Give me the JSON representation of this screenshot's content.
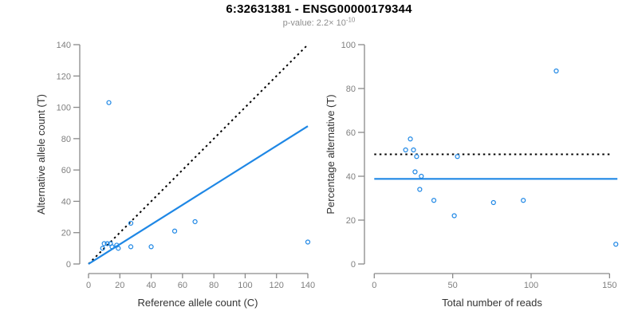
{
  "title": "6:32631381 - ENSG00000179344",
  "subtitle": {
    "prefix": "p-value: 2.2× 10",
    "exponent": "-10"
  },
  "colors": {
    "accent_blue": "#1E87E5",
    "dotted_black": "#000000",
    "axis_line": "#8A8A8A",
    "tick_label": "#7F7F7F",
    "axis_title": "#333333",
    "title_color": "#000000",
    "subtitle_color": "#8E8E8E"
  },
  "chart_data": [
    {
      "type": "scatter",
      "panel": "left",
      "xlabel": "Reference allele count (C)",
      "ylabel": "Alternative allele count (T)",
      "xlim": [
        0,
        143
      ],
      "ylim": [
        0,
        140
      ],
      "xticks": [
        0,
        20,
        40,
        60,
        80,
        100,
        120,
        140
      ],
      "yticks": [
        0,
        20,
        40,
        60,
        80,
        100,
        120,
        140
      ],
      "grid": false,
      "legend": null,
      "marker": "open-circle",
      "points": [
        [
          13,
          103
        ],
        [
          10,
          13
        ],
        [
          9,
          10
        ],
        [
          12,
          13
        ],
        [
          14,
          13
        ],
        [
          15,
          11
        ],
        [
          18,
          12
        ],
        [
          19,
          10
        ],
        [
          27,
          11
        ],
        [
          27,
          26
        ],
        [
          40,
          11
        ],
        [
          55,
          21
        ],
        [
          68,
          27
        ],
        [
          140,
          14
        ]
      ],
      "lines": [
        {
          "name": "identity-line",
          "style": "dotted",
          "color": "black",
          "from": [
            0,
            0
          ],
          "to": [
            140,
            140
          ]
        },
        {
          "name": "regression-line",
          "style": "solid",
          "color": "blue",
          "from": [
            0,
            0
          ],
          "to": [
            140,
            88
          ]
        }
      ]
    },
    {
      "type": "scatter",
      "panel": "right",
      "xlabel": "Total number of reads",
      "ylabel": "Percentage alternative (T)",
      "xlim": [
        0,
        155
      ],
      "ylim": [
        0,
        100
      ],
      "xticks": [
        0,
        50,
        100,
        150
      ],
      "yticks": [
        0,
        20,
        40,
        60,
        80,
        100
      ],
      "grid": false,
      "legend": null,
      "marker": "open-circle",
      "points": [
        [
          116,
          88
        ],
        [
          23,
          57
        ],
        [
          20,
          52
        ],
        [
          25,
          52
        ],
        [
          27,
          49
        ],
        [
          26,
          42
        ],
        [
          30,
          40
        ],
        [
          29,
          34
        ],
        [
          38,
          29
        ],
        [
          53,
          49
        ],
        [
          51,
          22
        ],
        [
          76,
          28
        ],
        [
          95,
          29
        ],
        [
          154,
          9
        ]
      ],
      "lines": [
        {
          "name": "null-50pct-line",
          "style": "dotted",
          "color": "black",
          "from": [
            0,
            50
          ],
          "to": [
            152,
            50
          ]
        },
        {
          "name": "mean-percentage-line",
          "style": "solid",
          "color": "blue",
          "from": [
            0,
            38.8
          ],
          "to": [
            155,
            38.8
          ]
        }
      ]
    }
  ]
}
